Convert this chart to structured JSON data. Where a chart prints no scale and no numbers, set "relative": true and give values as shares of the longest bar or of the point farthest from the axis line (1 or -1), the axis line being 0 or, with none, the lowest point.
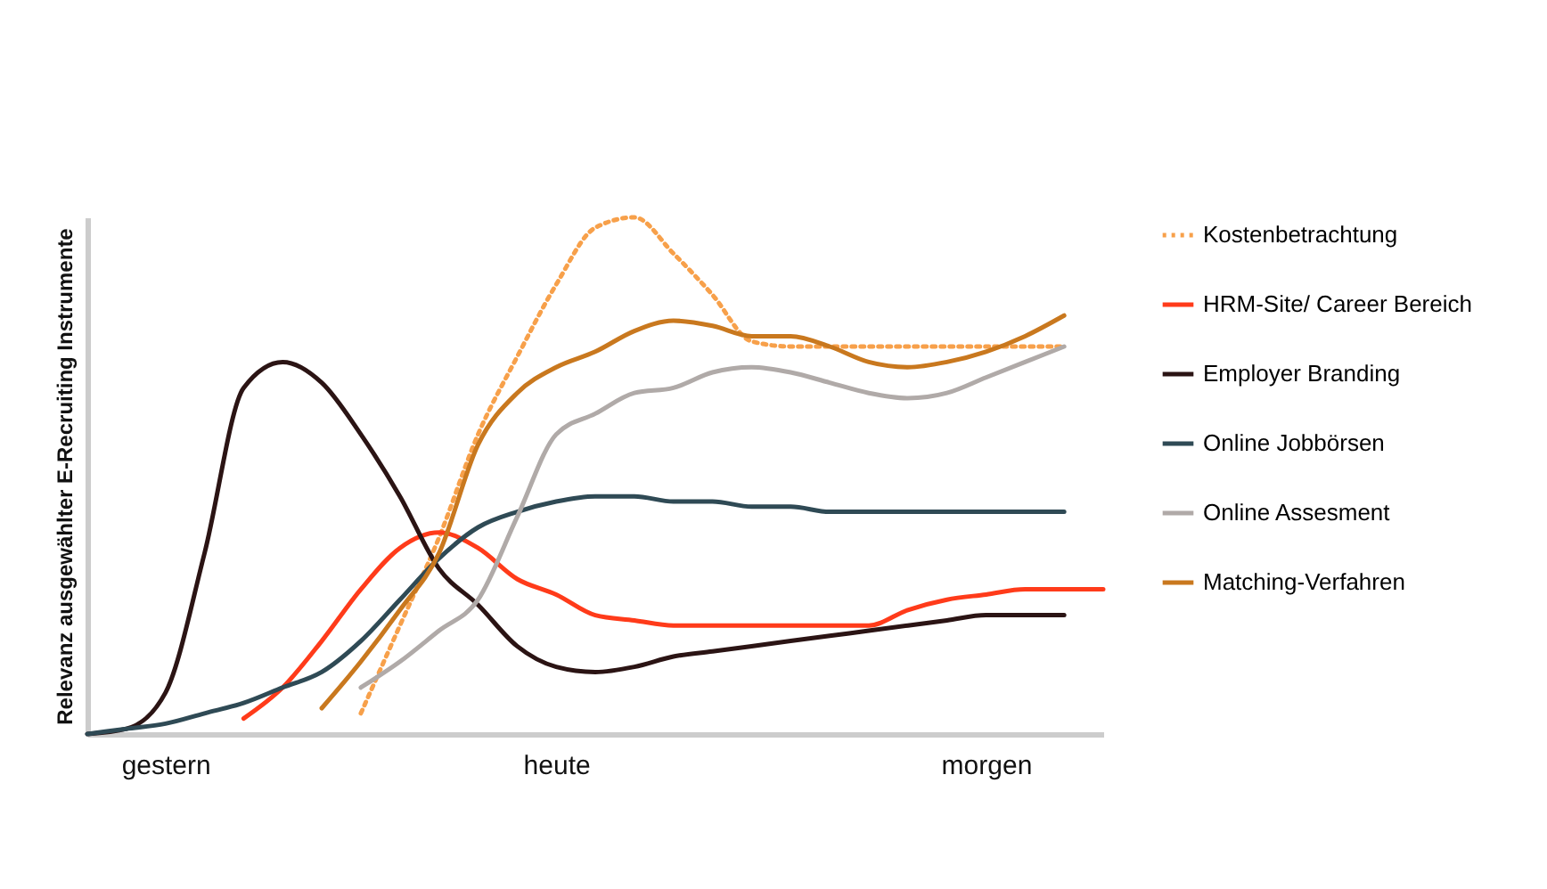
{
  "chart_data": {
    "type": "line",
    "relative": true,
    "ylabel": "Relevanz ausgewählter E-Recruiting Instrumente",
    "legend": "right",
    "grid": false,
    "categories": [
      null,
      null,
      "gestern",
      null,
      null,
      null,
      null,
      null,
      null,
      null,
      null,
      null,
      "heute",
      null,
      null,
      null,
      null,
      null,
      null,
      null,
      null,
      null,
      null,
      "morgen",
      null,
      null,
      null
    ],
    "series": [
      {
        "name": "Kostenbetrachtung",
        "color": "#f7a04a",
        "line_style": "dotted",
        "values": [
          null,
          null,
          null,
          null,
          null,
          null,
          null,
          0.04,
          0.21,
          0.38,
          0.58,
          0.73,
          0.87,
          0.98,
          1,
          0.93,
          0.85,
          0.76,
          0.75,
          0.75,
          0.75,
          0.75,
          0.75,
          0.75,
          0.75,
          0.75,
          null
        ]
      },
      {
        "name": "HRM-Site/ Career Bereich",
        "color": "#ff3b1a",
        "values": [
          null,
          null,
          null,
          null,
          0.03,
          0.09,
          0.18,
          0.28,
          0.36,
          0.39,
          0.36,
          0.3,
          0.27,
          0.23,
          0.22,
          0.21,
          0.21,
          0.21,
          0.21,
          0.21,
          0.21,
          0.24,
          0.26,
          0.27,
          0.28,
          0.28,
          0.28
        ]
      },
      {
        "name": "Employer Branding",
        "color": "#2b1414",
        "values": [
          0,
          0.01,
          0.08,
          0.35,
          0.67,
          0.72,
          0.68,
          0.58,
          0.46,
          0.32,
          0.25,
          0.17,
          0.13,
          0.12,
          0.13,
          0.15,
          0.16,
          0.17,
          0.18,
          0.19,
          0.2,
          0.21,
          0.22,
          0.23,
          0.23,
          0.23,
          null
        ]
      },
      {
        "name": "Online Jobbörsen",
        "color": "#2f4a55",
        "values": [
          0,
          0.01,
          0.02,
          0.04,
          0.06,
          0.09,
          0.12,
          0.18,
          0.26,
          0.34,
          0.4,
          0.43,
          0.45,
          0.46,
          0.46,
          0.45,
          0.45,
          0.44,
          0.44,
          0.43,
          0.43,
          0.43,
          0.43,
          0.43,
          0.43,
          0.43,
          null
        ]
      },
      {
        "name": "Online Assesment",
        "color": "#b0aaa8",
        "values": [
          null,
          null,
          null,
          null,
          null,
          null,
          null,
          0.09,
          0.14,
          0.2,
          0.26,
          0.42,
          0.58,
          0.62,
          0.66,
          0.67,
          0.7,
          0.71,
          0.7,
          0.68,
          0.66,
          0.65,
          0.66,
          0.69,
          0.72,
          0.75,
          null
        ]
      },
      {
        "name": "Matching-Verfahren",
        "color": "#c9781e",
        "values": [
          null,
          null,
          null,
          null,
          null,
          null,
          0.05,
          0.14,
          0.24,
          0.35,
          0.56,
          0.66,
          0.71,
          0.74,
          0.78,
          0.8,
          0.79,
          0.77,
          0.77,
          0.75,
          0.72,
          0.71,
          0.72,
          0.74,
          0.77,
          0.81,
          null
        ]
      }
    ]
  }
}
